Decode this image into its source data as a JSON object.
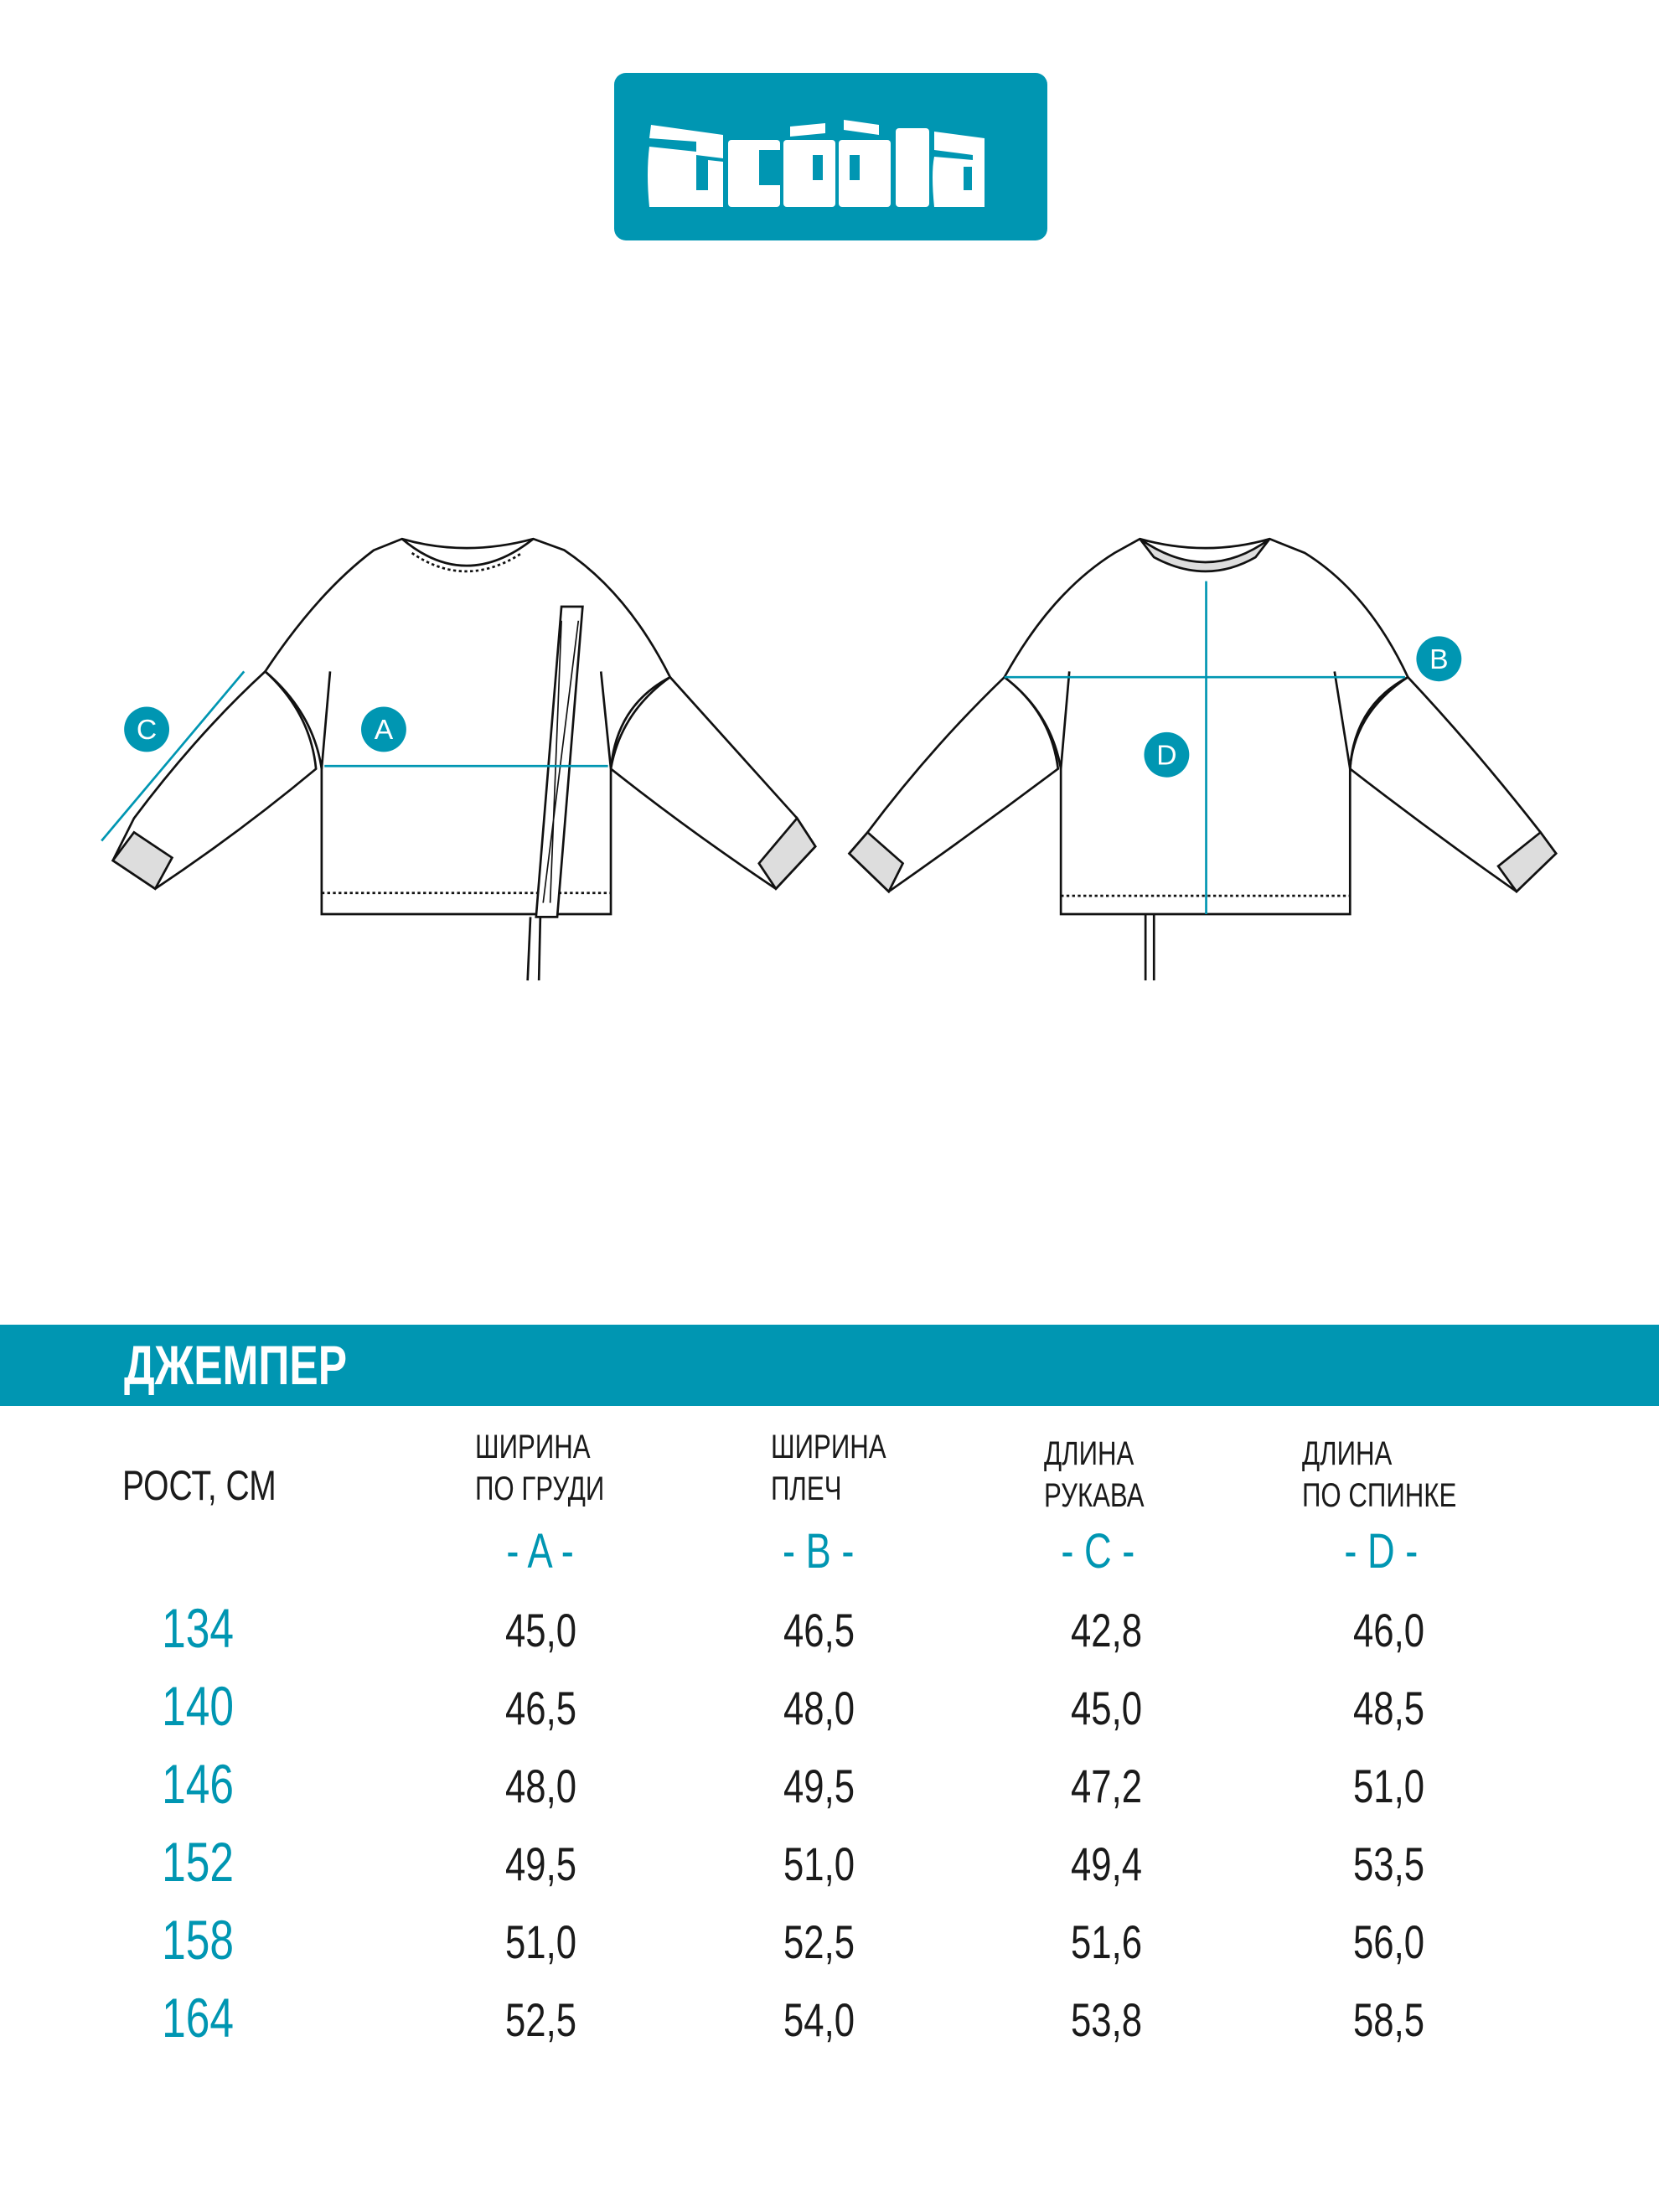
{
  "brand": {
    "logo_text": "acóòla",
    "color": "#0096b2"
  },
  "product": {
    "title": "ДЖЕМПЕР"
  },
  "diagram_markers": [
    "A",
    "B",
    "C",
    "D"
  ],
  "table": {
    "height_header": "РОСТ, СМ",
    "columns": [
      {
        "line1": "ШИРИНА",
        "line2": "ПО ГРУДИ",
        "letter": "- A -"
      },
      {
        "line1": "ШИРИНА",
        "line2": "ПЛЕЧ",
        "letter": "- B -"
      },
      {
        "line1": "ДЛИНА",
        "line2": "РУКАВА",
        "letter": "- C -"
      },
      {
        "line1": "ДЛИНА",
        "line2": "ПО СПИНКЕ",
        "letter": "- D -"
      }
    ],
    "rows": [
      {
        "height": "134",
        "values": [
          "45,0",
          "46,5",
          "42,8",
          "46,0"
        ]
      },
      {
        "height": "140",
        "values": [
          "46,5",
          "48,0",
          "45,0",
          "48,5"
        ]
      },
      {
        "height": "146",
        "values": [
          "48,0",
          "49,5",
          "47,2",
          "51,0"
        ]
      },
      {
        "height": "152",
        "values": [
          "49,5",
          "51,0",
          "49,4",
          "53,5"
        ]
      },
      {
        "height": "158",
        "values": [
          "51,0",
          "52,5",
          "51,6",
          "56,0"
        ]
      },
      {
        "height": "164",
        "values": [
          "52,5",
          "54,0",
          "53,8",
          "58,5"
        ]
      }
    ]
  }
}
